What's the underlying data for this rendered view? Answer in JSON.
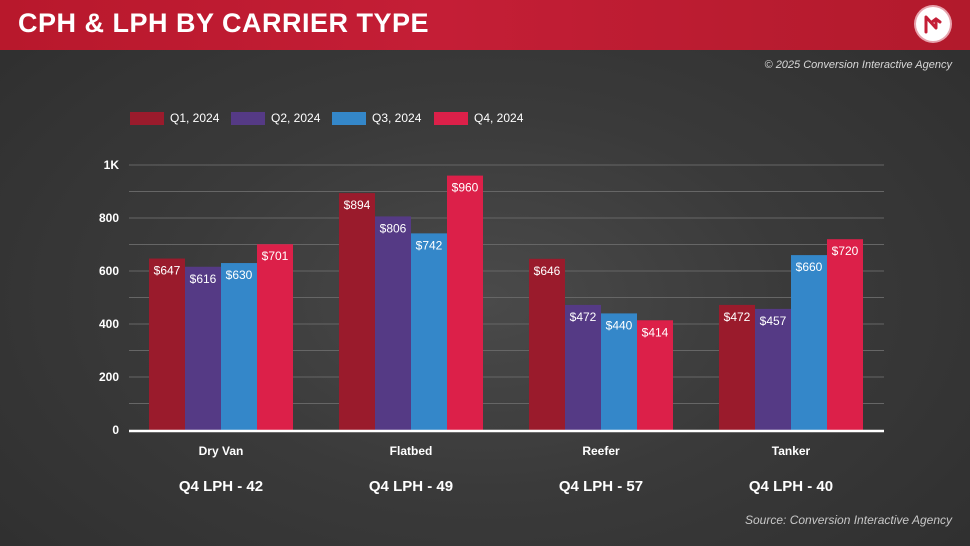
{
  "header": {
    "title": "CPH & LPH BY CARRIER TYPE"
  },
  "logo": {
    "icon": "brand-logo-icon"
  },
  "copyright": "© 2025 Conversion Interactive Agency",
  "source": "Source: Conversion Interactive Agency",
  "colors": {
    "header": "#c41e36",
    "series": [
      "#9a1b2c",
      "#553a85",
      "#3487c9",
      "#dc2049"
    ]
  },
  "chart_data": {
    "type": "bar",
    "categories": [
      "Dry Van",
      "Flatbed",
      "Reefer",
      "Tanker"
    ],
    "series": [
      {
        "name": "Q1, 2024",
        "values": [
          647,
          894,
          646,
          472
        ],
        "labels": [
          "$647",
          "$894",
          "$646",
          "$472"
        ]
      },
      {
        "name": "Q2, 2024",
        "values": [
          616,
          806,
          472,
          457
        ],
        "labels": [
          "$616",
          "$806",
          "$472",
          "$457"
        ]
      },
      {
        "name": "Q3, 2024",
        "values": [
          630,
          742,
          440,
          660
        ],
        "labels": [
          "$630",
          "$742",
          "$440",
          "$660"
        ]
      },
      {
        "name": "Q4, 2024",
        "values": [
          701,
          960,
          414,
          720
        ],
        "labels": [
          "$701",
          "$960",
          "$414",
          "$720"
        ]
      }
    ],
    "yticks": [
      0,
      200,
      400,
      600,
      800,
      1000
    ],
    "ytick_labels": [
      "0",
      "200",
      "400",
      "600",
      "800",
      "1K"
    ],
    "ylim": [
      0,
      1000
    ],
    "grid": true,
    "legend_position": "top-left",
    "lph_labels": [
      "Q4 LPH - 42",
      "Q4 LPH - 49",
      "Q4 LPH - 57",
      "Q4 LPH - 40"
    ]
  }
}
